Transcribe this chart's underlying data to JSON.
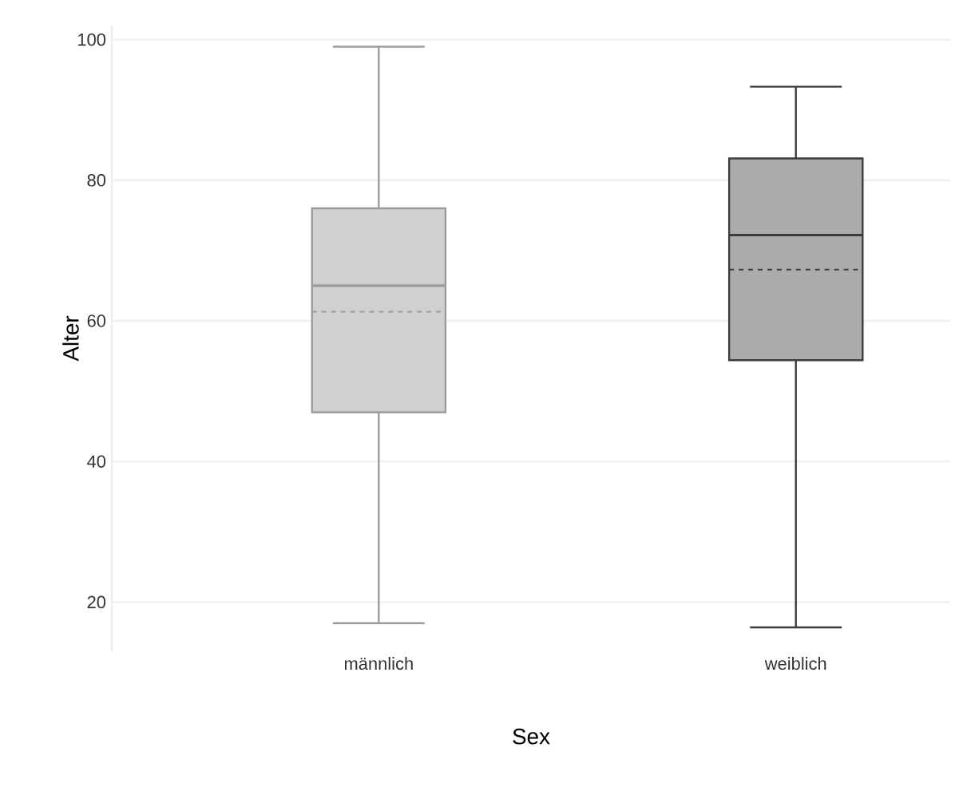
{
  "chart_data": {
    "type": "box",
    "xlabel": "Sex",
    "ylabel": "Alter",
    "categories": [
      "männlich",
      "weiblich"
    ],
    "boxes": [
      {
        "low": 17,
        "q1": 47,
        "median": 65,
        "q3": 76,
        "high": 99,
        "mean": 61.3
      },
      {
        "low": 16.4,
        "q1": 54.4,
        "median": 72.2,
        "q3": 83.1,
        "high": 93.3,
        "mean": 67.3
      }
    ],
    "colors": [
      "#d0d0d0",
      "#ababab"
    ],
    "ylim": [
      13,
      102
    ],
    "yticks": [
      20,
      40,
      60,
      80,
      100
    ],
    "grid": "y"
  }
}
